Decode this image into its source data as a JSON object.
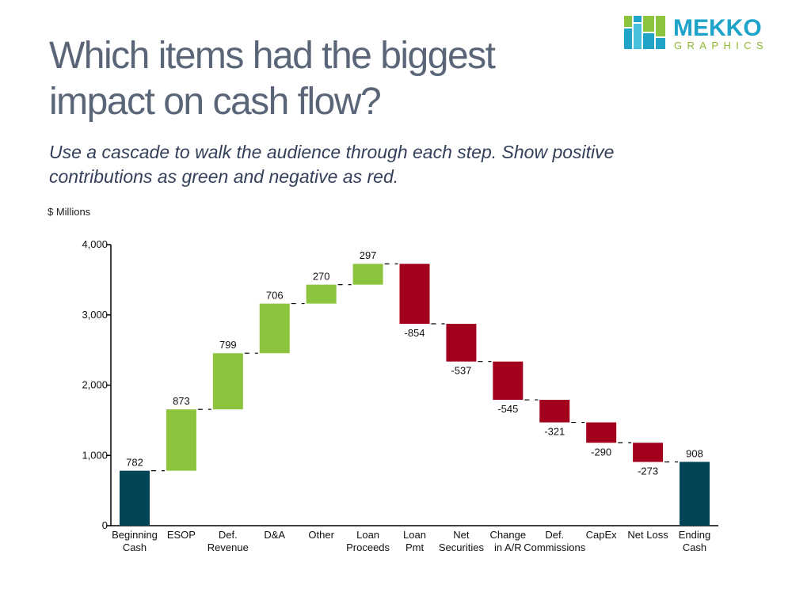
{
  "title_lines": [
    "Which items had the biggest",
    "impact on cash flow?"
  ],
  "subtitle_lines": [
    "Use a cascade to walk the audience through each step. Show positive",
    "contributions as green and negative as red."
  ],
  "logo": {
    "word1": "MEKKO",
    "word2": "GRAPHICS"
  },
  "colors": {
    "total": "#014556",
    "positive": "#8cc43e",
    "negative": "#a3001e",
    "axis": "#000000"
  },
  "chart_data": {
    "type": "waterfall",
    "units_label": "$ Millions",
    "ylim": [
      0,
      4000
    ],
    "yticks": [
      {
        "value": 0,
        "label": "0"
      },
      {
        "value": 1000,
        "label": "1,000"
      },
      {
        "value": 2000,
        "label": "2,000"
      },
      {
        "value": 3000,
        "label": "3,000"
      },
      {
        "value": 4000,
        "label": "4,000"
      }
    ],
    "steps": [
      {
        "category": [
          "Beginning",
          "Cash"
        ],
        "value": 782,
        "label": "782",
        "kind": "total"
      },
      {
        "category": [
          "ESOP"
        ],
        "value": 873,
        "label": "873",
        "kind": "positive"
      },
      {
        "category": [
          "Def.",
          "Revenue"
        ],
        "value": 799,
        "label": "799",
        "kind": "positive"
      },
      {
        "category": [
          "D&A"
        ],
        "value": 706,
        "label": "706",
        "kind": "positive"
      },
      {
        "category": [
          "Other"
        ],
        "value": 270,
        "label": "270",
        "kind": "positive"
      },
      {
        "category": [
          "Loan",
          "Proceeds"
        ],
        "value": 297,
        "label": "297",
        "kind": "positive"
      },
      {
        "category": [
          "Loan",
          "Pmt"
        ],
        "value": -854,
        "label": "-854",
        "kind": "negative"
      },
      {
        "category": [
          "Net",
          "Securities"
        ],
        "value": -537,
        "label": "-537",
        "kind": "negative"
      },
      {
        "category": [
          "Change",
          "in A/R"
        ],
        "value": -545,
        "label": "-545",
        "kind": "negative"
      },
      {
        "category": [
          "Def.",
          "Commissions"
        ],
        "value": -321,
        "label": "-321",
        "kind": "negative"
      },
      {
        "category": [
          "CapEx"
        ],
        "value": -290,
        "label": "-290",
        "kind": "negative"
      },
      {
        "category": [
          "Net Loss"
        ],
        "value": -273,
        "label": "-273",
        "kind": "negative"
      },
      {
        "category": [
          "Ending",
          "Cash"
        ],
        "value": 908,
        "label": "908",
        "kind": "total"
      }
    ]
  }
}
